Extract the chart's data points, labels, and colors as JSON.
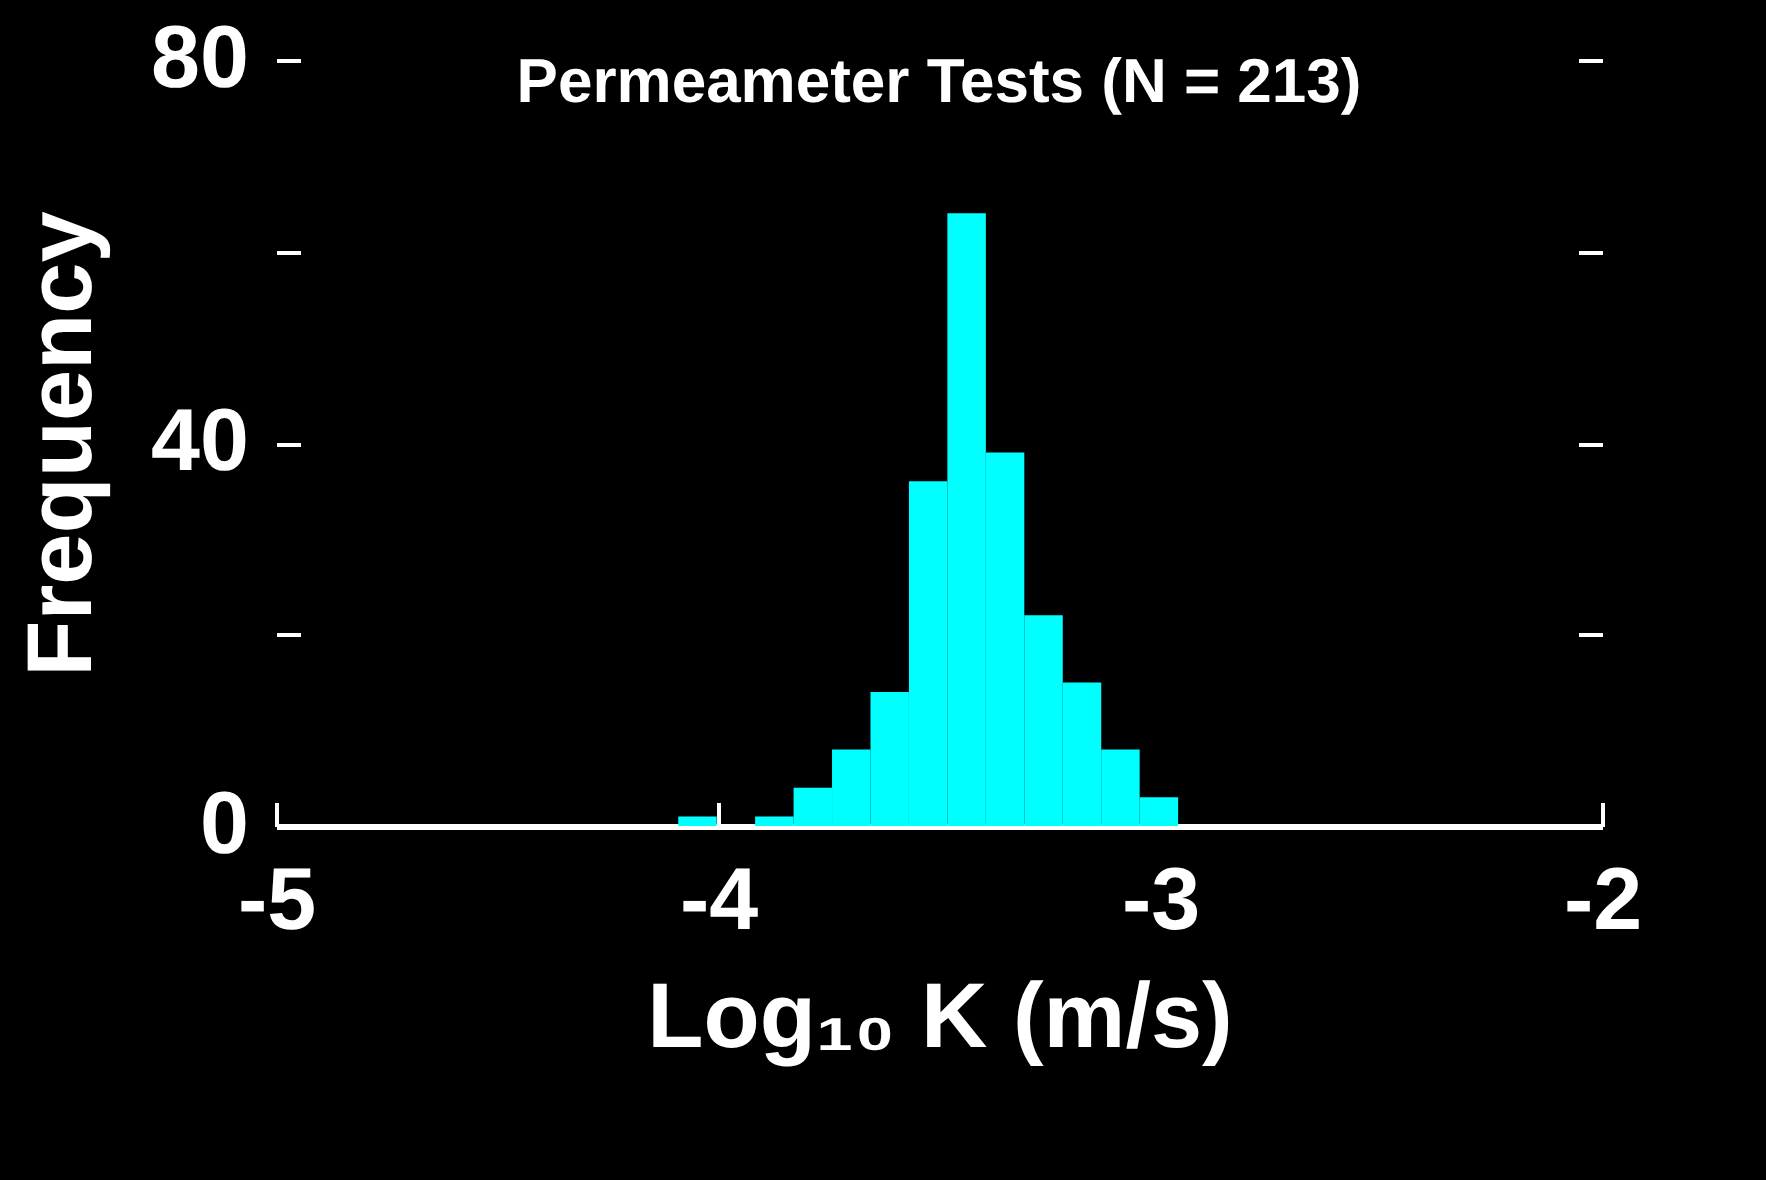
{
  "chart_data": {
    "type": "histogram",
    "title": "Permeameter Tests (N = 213)",
    "xlabel": "Log₁₀ K (m/s)",
    "ylabel": "Frequency",
    "color": "#00ffff",
    "bins": [
      -4.09,
      -4.003,
      -3.916,
      -3.829,
      -3.742,
      -3.655,
      -3.568,
      -3.481,
      -3.394,
      -3.307,
      -3.22,
      -3.133,
      -3.046,
      -2.959
    ],
    "values": [
      1,
      0,
      1,
      4,
      8,
      14,
      36,
      64,
      39,
      22,
      15,
      8,
      3
    ],
    "xlim": [
      -5,
      -2
    ],
    "xticks": [
      -5,
      -4,
      -3,
      -2
    ],
    "ylim": [
      0,
      80
    ],
    "yticks": [
      0,
      {
        "value": 20,
        "label": null
      },
      40,
      {
        "value": 60,
        "label": null
      },
      80
    ],
    "grid": false
  }
}
